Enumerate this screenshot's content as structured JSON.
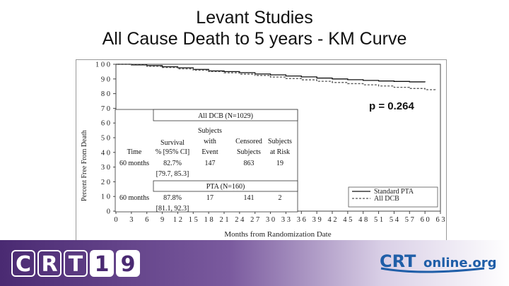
{
  "title_line1": "Levant Studies",
  "title_line2": "All Cause Death to 5 years - KM Curve",
  "chart_data": {
    "type": "line",
    "ylabel": "Percent Free From Death",
    "xlabel": "Months from Randomization Date",
    "annotation": "p = 0.264",
    "yticks": [
      "0",
      "10",
      "20",
      "30",
      "40",
      "50",
      "60",
      "70",
      "80",
      "90",
      "100"
    ],
    "xticks": [
      "0",
      "3",
      "6",
      "9",
      "12",
      "15",
      "18",
      "21",
      "24",
      "27",
      "30",
      "33",
      "36",
      "39",
      "42",
      "45",
      "48",
      "51",
      "54",
      "57",
      "60",
      "63"
    ],
    "xlim": [
      0,
      63
    ],
    "ylim": [
      0,
      100
    ],
    "legend_position": "bottom-right",
    "series": [
      {
        "name": "Standard PTA",
        "x": [
          0,
          3,
          6,
          9,
          12,
          15,
          18,
          21,
          24,
          27,
          30,
          33,
          36,
          39,
          42,
          45,
          48,
          51,
          54,
          57,
          60
        ],
        "y": [
          100,
          99.6,
          99.1,
          98.3,
          97.6,
          96.5,
          95.5,
          95,
          94.3,
          93.4,
          92.8,
          92,
          91.4,
          90.6,
          90,
          89.5,
          89,
          88.6,
          88.3,
          88,
          87.8
        ]
      },
      {
        "name": "All DCB",
        "x": [
          0,
          3,
          6,
          9,
          12,
          15,
          18,
          21,
          24,
          27,
          30,
          33,
          36,
          39,
          42,
          45,
          48,
          51,
          54,
          57,
          60,
          62
        ],
        "y": [
          100,
          99.5,
          98.6,
          97.8,
          96.9,
          96,
          95,
          94.2,
          93.3,
          92.4,
          91.3,
          90.3,
          89.4,
          88.4,
          87.6,
          86.8,
          86,
          85.2,
          84.3,
          83.5,
          82.7,
          82.2
        ]
      }
    ],
    "colors": {
      "standard_pta": "#111111",
      "all_dcb": "#555555"
    },
    "table": {
      "dcb_header": "All DCB (N=1029)",
      "pta_header": "PTA (N=160)",
      "col_time": "Time",
      "col_survival_1": "Survival",
      "col_survival_2": "% [95% CI]",
      "col_events_1": "Subjects",
      "col_events_2": "with",
      "col_events_3": "Event",
      "col_censored_1": "Censored",
      "col_censored_2": "Subjects",
      "col_risk_1": "Subjects",
      "col_risk_2": "at Risk",
      "dcb_row": {
        "time": "60 months",
        "survival": "82.7%",
        "ci": "[79.7, 85.3]",
        "events": "147",
        "censored": "863",
        "risk": "19"
      },
      "pta_row": {
        "time": "60 months",
        "survival": "87.8%",
        "ci": "[81.1, 92.3]",
        "events": "17",
        "censored": "141",
        "risk": "2"
      }
    }
  },
  "footer": {
    "crt_logo_chars": [
      "C",
      "R",
      "T",
      "1",
      "9"
    ],
    "crtonline_left": "CRT",
    "crtonline_right": "online.org",
    "colors": {
      "crt_blue": "#1f5ea8",
      "footer_purple": "#4a2a72"
    }
  }
}
